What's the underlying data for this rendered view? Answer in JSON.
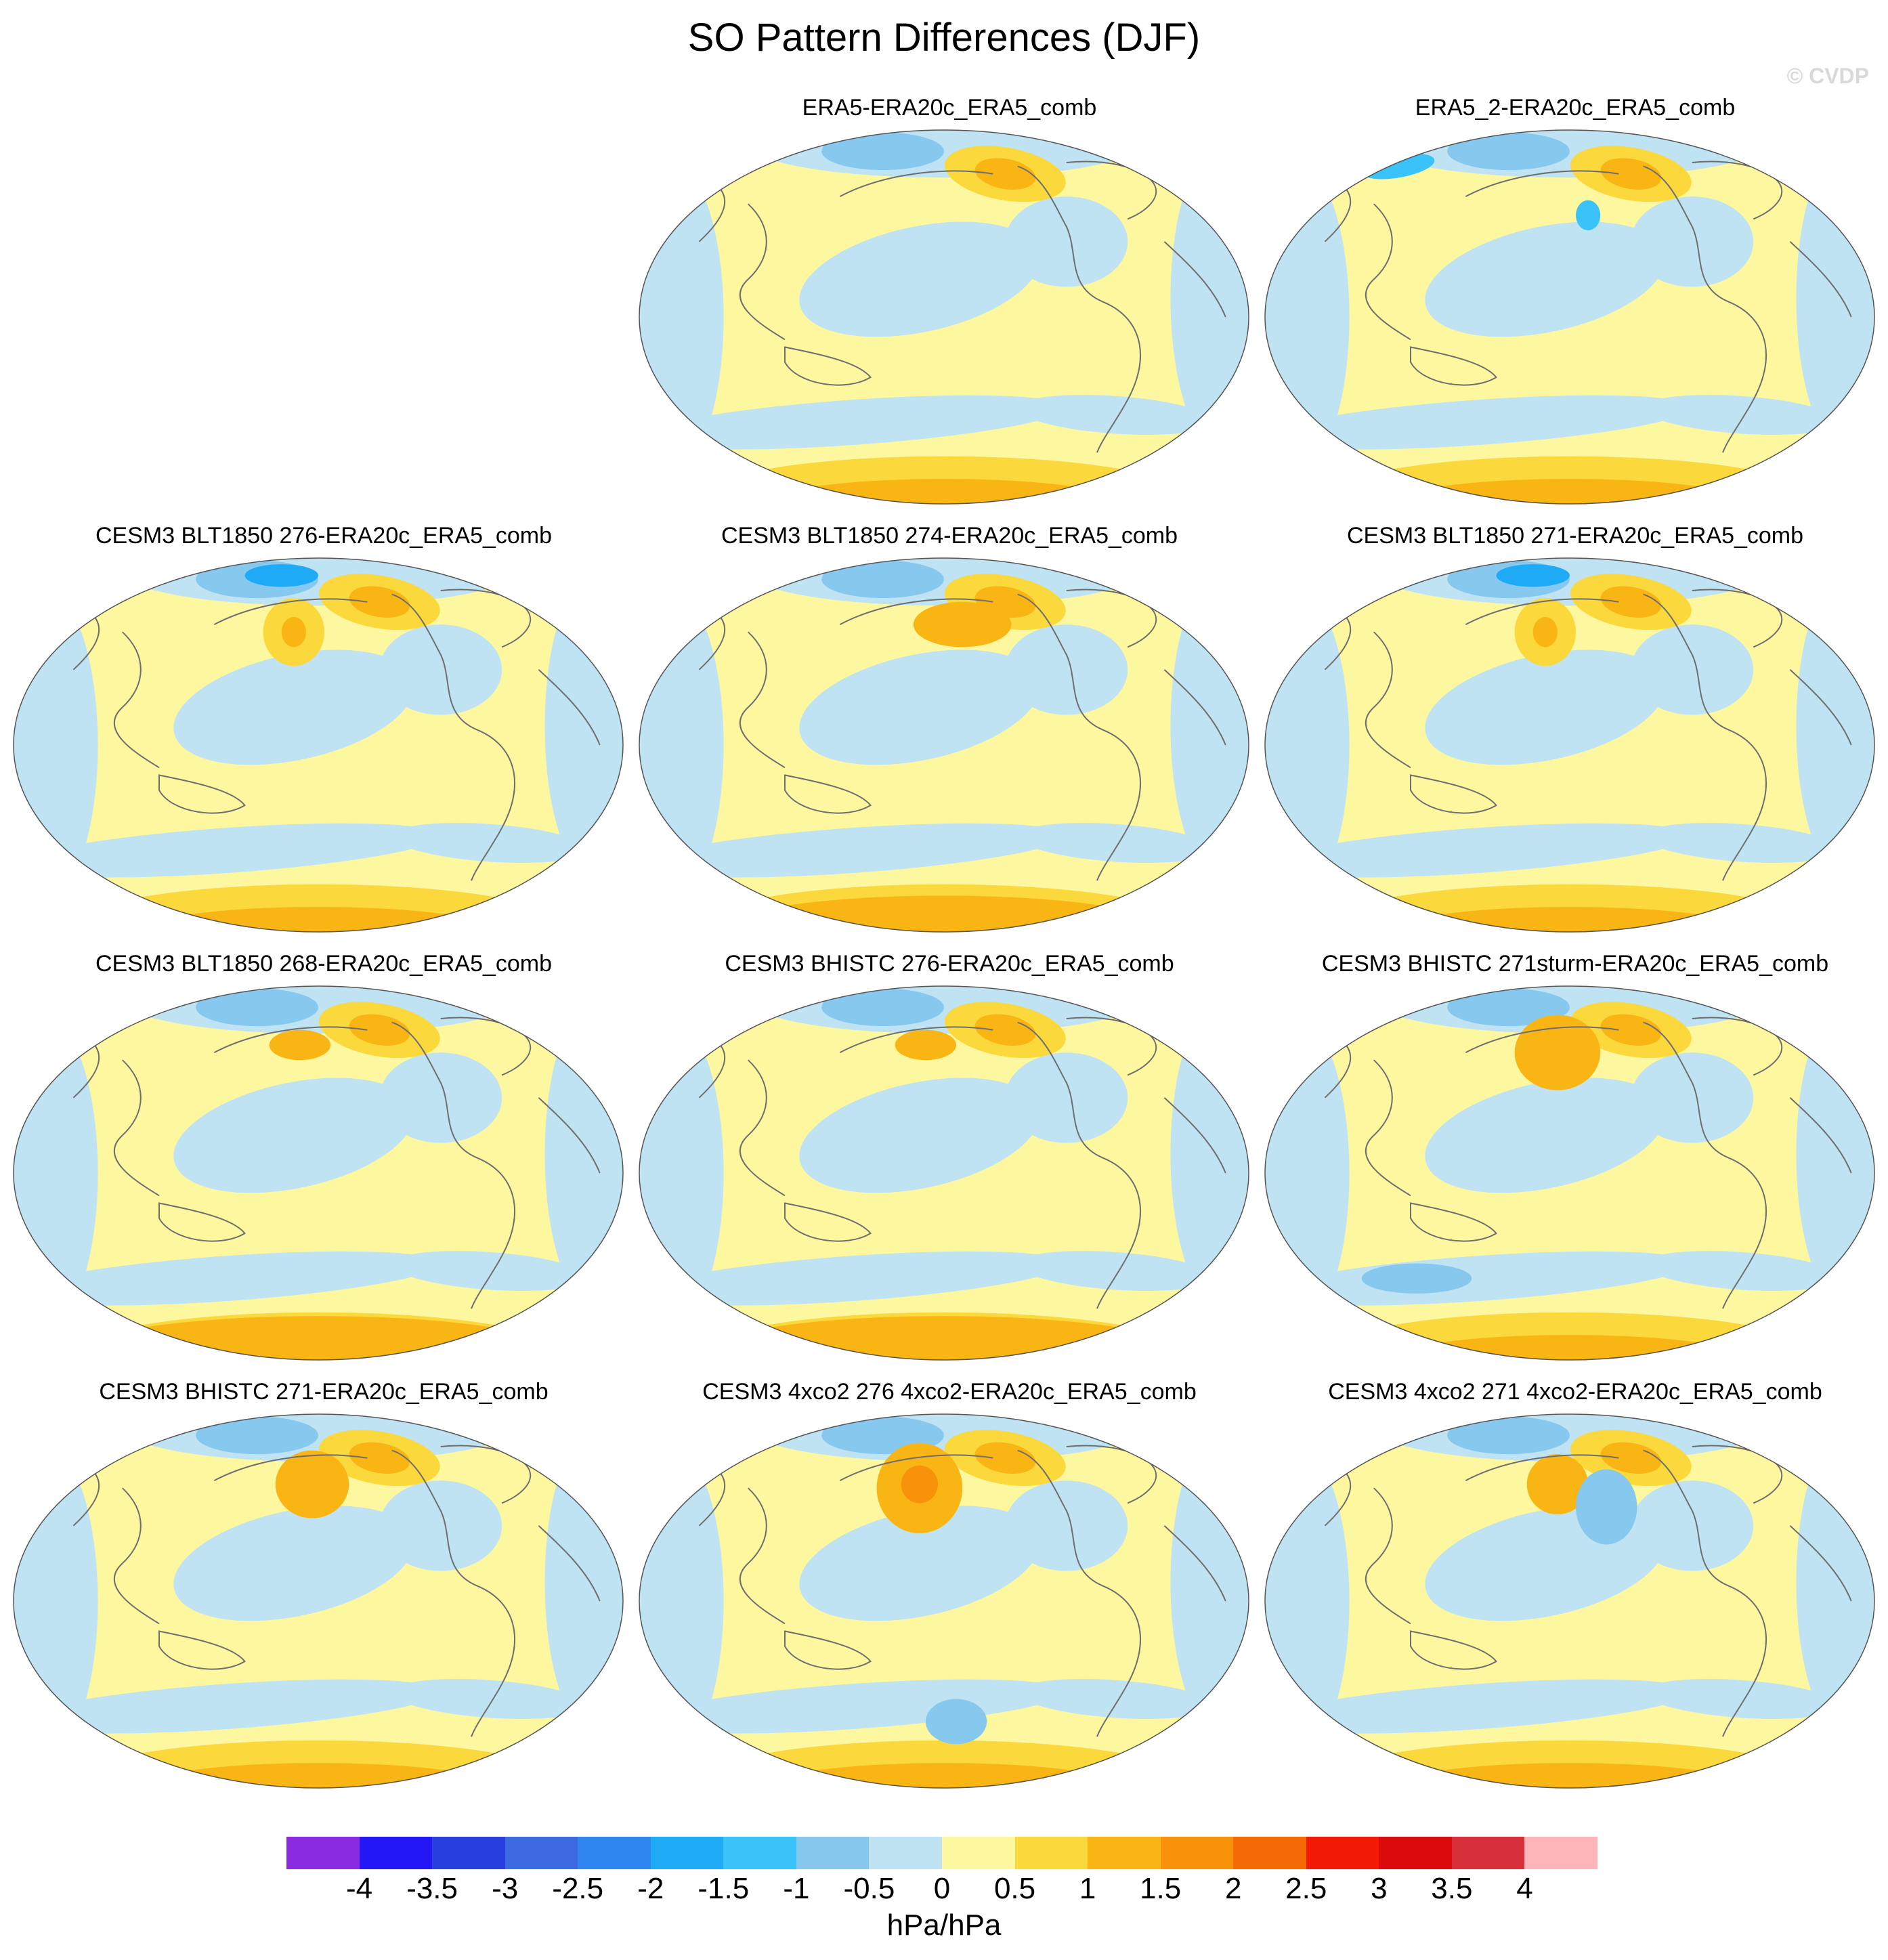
{
  "title": "SO Pattern Differences (DJF)",
  "watermark": "© CVDP",
  "legend": {
    "units": "hPa/hPa",
    "labels": [
      "-4",
      "-3.5",
      "-3",
      "-2.5",
      "-2",
      "-1.5",
      "-1",
      "-0.5",
      "0",
      "0.5",
      "1",
      "1.5",
      "2",
      "2.5",
      "3",
      "3.5",
      "4"
    ],
    "colors": [
      "#8a2be2",
      "#2318f5",
      "#2a3fe0",
      "#3b6ae0",
      "#2f86f0",
      "#1faaf6",
      "#3ac3f8",
      "#87c9ee",
      "#bfe3f3",
      "#fdf7a0",
      "#fbd83b",
      "#f8b514",
      "#f7920a",
      "#f56a04",
      "#f21a04",
      "#dc0a0a",
      "#d7303a",
      "#fdb5b9"
    ]
  },
  "panels": [
    {
      "title": "ERA5-ERA20c_ERA5_comb"
    },
    {
      "title": "ERA5_2-ERA20c_ERA5_comb"
    },
    {
      "title": "CESM3 BLT1850 276-ERA20c_ERA5_comb"
    },
    {
      "title": "CESM3 BLT1850 274-ERA20c_ERA5_comb"
    },
    {
      "title": "CESM3 BLT1850 271-ERA20c_ERA5_comb"
    },
    {
      "title": "CESM3 BLT1850 268-ERA20c_ERA5_comb"
    },
    {
      "title": "CESM3 BHISTC 276-ERA20c_ERA5_comb"
    },
    {
      "title": "CESM3 BHISTC 271sturm-ERA20c_ERA5_comb"
    },
    {
      "title": "CESM3 BHISTC 271-ERA20c_ERA5_comb"
    },
    {
      "title": "CESM3 4xco2 276 4xco2-ERA20c_ERA5_comb"
    },
    {
      "title": "CESM3 4xco2 271 4xco2-ERA20c_ERA5_comb"
    }
  ]
}
